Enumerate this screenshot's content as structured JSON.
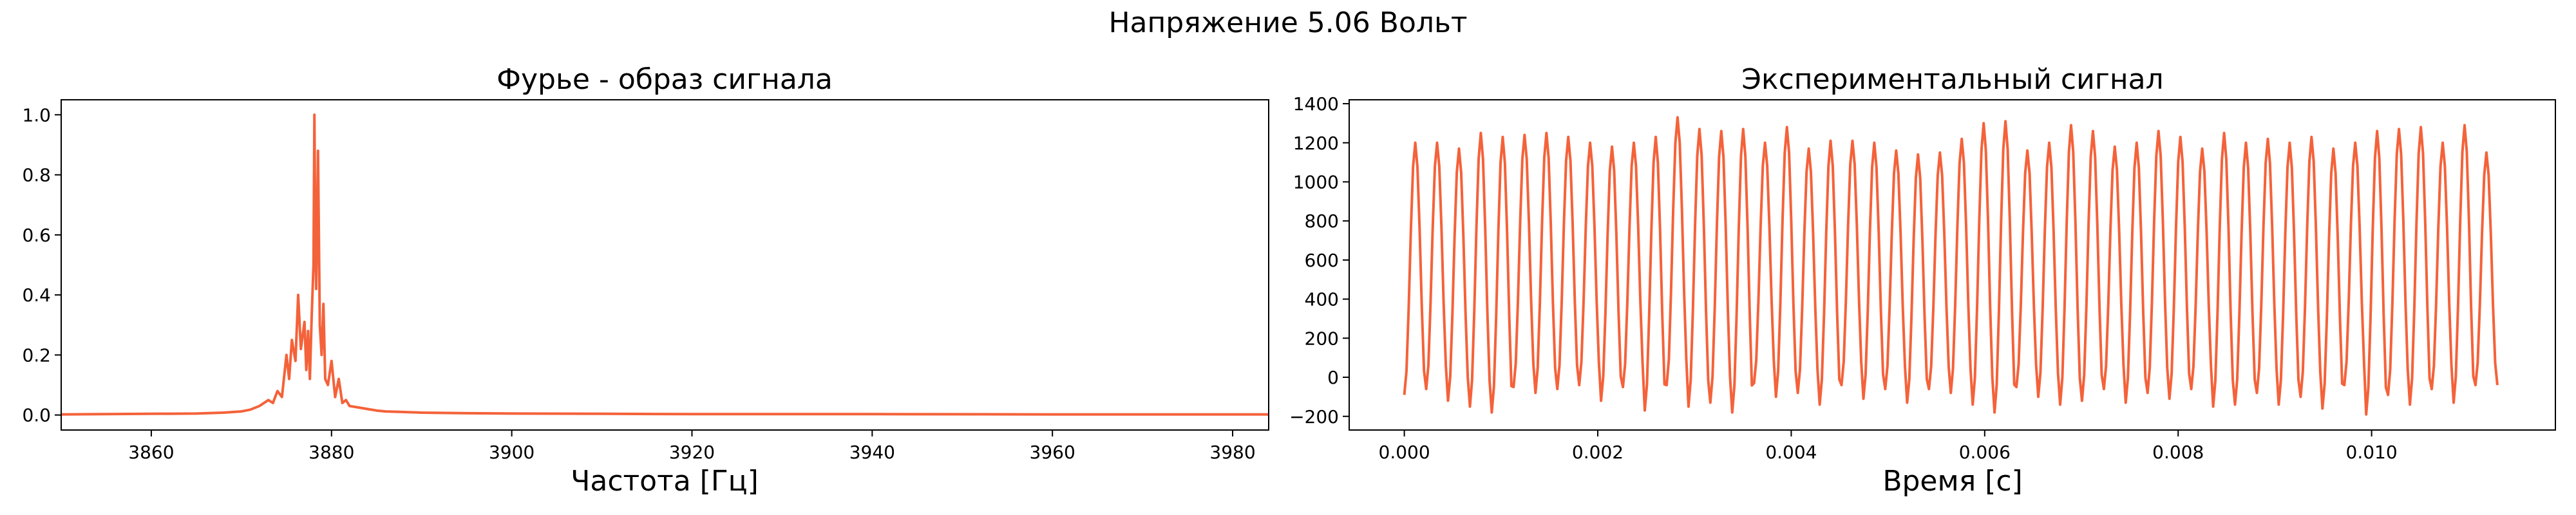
{
  "figure": {
    "suptitle": "Напряжение 5.06 Вольт"
  },
  "chart_data": [
    {
      "type": "line",
      "title": "Фурье - образ сигнала",
      "xlabel": "Частота [Гц]",
      "ylabel": "",
      "xlim": [
        3850,
        3984
      ],
      "ylim": [
        -0.05,
        1.05
      ],
      "xticks": [
        3860,
        3880,
        3900,
        3920,
        3940,
        3960,
        3980
      ],
      "yticks": [
        0.0,
        0.2,
        0.4,
        0.6,
        0.8,
        1.0
      ],
      "xtick_labels": [
        "3860",
        "3880",
        "3900",
        "3920",
        "3940",
        "3960",
        "3980"
      ],
      "ytick_labels": [
        "0.0",
        "0.2",
        "0.4",
        "0.6",
        "0.8",
        "1.0"
      ],
      "grid": false,
      "color": "#f4623a",
      "series": [
        {
          "x": [
            3850,
            3855,
            3860,
            3865,
            3868,
            3870,
            3871,
            3872,
            3873,
            3873.5,
            3874,
            3874.5,
            3875,
            3875.3,
            3875.6,
            3876,
            3876.3,
            3876.6,
            3877,
            3877.2,
            3877.4,
            3877.6,
            3877.8,
            3878,
            3878.1,
            3878.2,
            3878.3,
            3878.5,
            3878.7,
            3878.9,
            3879.1,
            3879.3,
            3879.6,
            3880,
            3880.4,
            3880.8,
            3881.2,
            3881.6,
            3882,
            3883,
            3884,
            3885,
            3886,
            3888,
            3890,
            3895,
            3900,
            3910,
            3920,
            3940,
            3960,
            3984
          ],
          "y": [
            0.002,
            0.003,
            0.004,
            0.005,
            0.008,
            0.012,
            0.018,
            0.03,
            0.05,
            0.04,
            0.08,
            0.06,
            0.2,
            0.12,
            0.25,
            0.18,
            0.4,
            0.22,
            0.31,
            0.15,
            0.28,
            0.12,
            0.33,
            0.5,
            1.0,
            0.6,
            0.42,
            0.88,
            0.3,
            0.2,
            0.37,
            0.12,
            0.1,
            0.18,
            0.06,
            0.12,
            0.04,
            0.05,
            0.03,
            0.025,
            0.02,
            0.015,
            0.012,
            0.01,
            0.008,
            0.006,
            0.005,
            0.004,
            0.003,
            0.003,
            0.002,
            0.002
          ]
        }
      ]
    },
    {
      "type": "line",
      "title": "Экспериментальный сигнал",
      "xlabel": "Время [с]",
      "ylabel": "",
      "xlim": [
        -0.00057,
        0.0119
      ],
      "ylim": [
        -270,
        1420
      ],
      "xticks": [
        0.0,
        0.002,
        0.004,
        0.006,
        0.008,
        0.01
      ],
      "yticks": [
        -200,
        0,
        200,
        400,
        600,
        800,
        1000,
        1200,
        1400
      ],
      "xtick_labels": [
        "0.000",
        "0.002",
        "0.004",
        "0.006",
        "0.008",
        "0.010"
      ],
      "ytick_labels": [
        "−200",
        "0",
        "200",
        "400",
        "600",
        "800",
        "1000",
        "1200",
        "1400"
      ],
      "grid": false,
      "color": "#f4623a",
      "series": [
        {
          "t_start": 0.0,
          "t_end": 0.0113,
          "peaks": [
            1200,
            1200,
            1170,
            1250,
            1230,
            1240,
            1250,
            1230,
            1200,
            1180,
            1200,
            1230,
            1330,
            1270,
            1260,
            1270,
            1200,
            1280,
            1170,
            1210,
            1210,
            1200,
            1160,
            1140,
            1150,
            1220,
            1300,
            1310,
            1160,
            1200,
            1290,
            1260,
            1180,
            1200,
            1260,
            1230,
            1170,
            1250,
            1200,
            1220,
            1200,
            1230,
            1170,
            1200,
            1260,
            1270,
            1280,
            1200,
            1290,
            1150
          ],
          "troughs": [
            -90,
            -60,
            -120,
            -150,
            -180,
            -50,
            -80,
            -60,
            -40,
            -120,
            -50,
            -170,
            -40,
            -150,
            -130,
            -180,
            -30,
            -100,
            -80,
            -140,
            -40,
            -110,
            -60,
            -130,
            -60,
            -80,
            -140,
            -180,
            -50,
            -100,
            -140,
            -120,
            -60,
            -130,
            -80,
            -110,
            -60,
            -150,
            -140,
            -80,
            -140,
            -100,
            -160,
            -40,
            -190,
            -90,
            -140,
            -60,
            -130,
            -40
          ]
        }
      ]
    }
  ]
}
